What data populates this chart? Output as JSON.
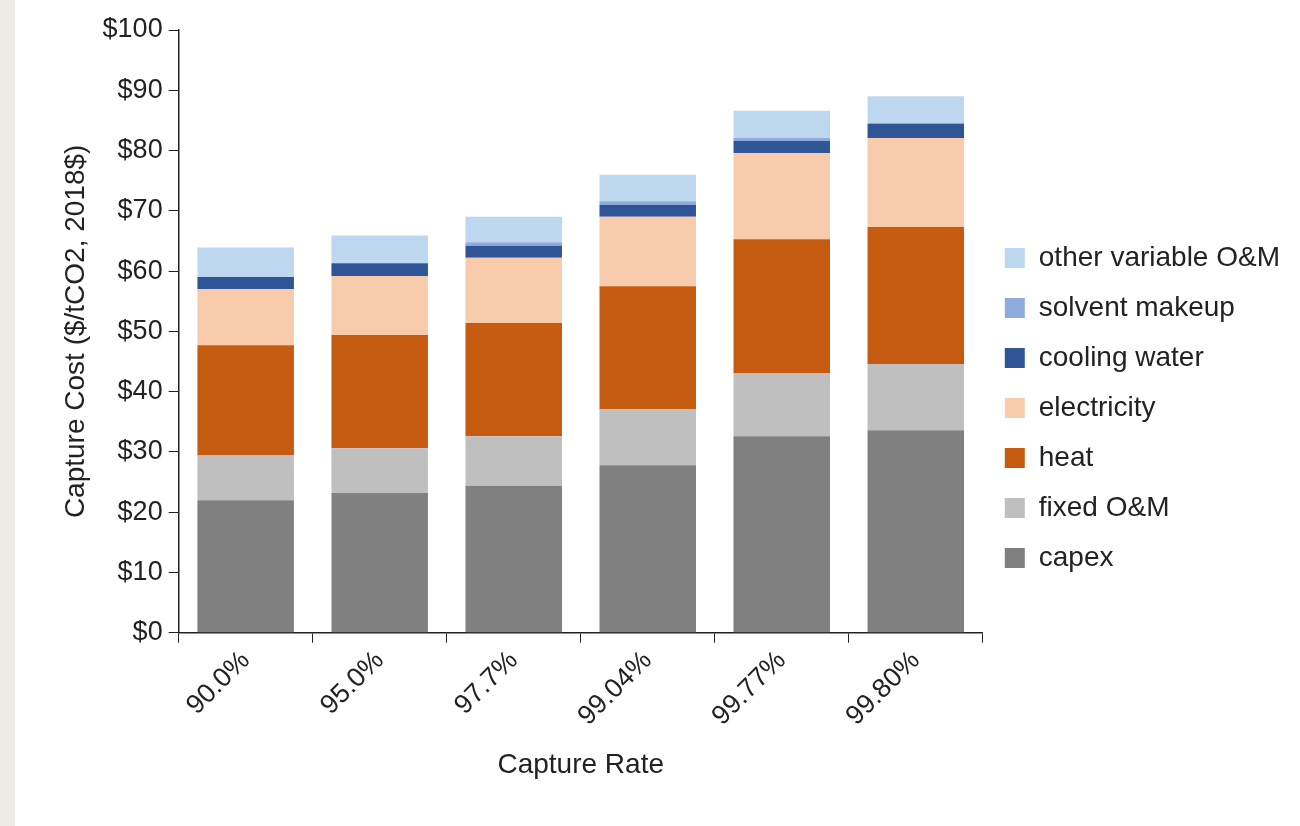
{
  "chart_data": {
    "type": "bar",
    "stacked": true,
    "xlabel": "Capture Rate",
    "ylabel": "Capture Cost ($/tCO2, 2018$)",
    "categories": [
      "90.0%",
      "95.0%",
      "97.7%",
      "99.04%",
      "99.77%",
      "99.80%"
    ],
    "series": [
      {
        "name": "capex",
        "color": "#808080",
        "values": [
          22,
          23.2,
          24.4,
          27.8,
          32.6,
          33.6
        ]
      },
      {
        "name": "fixed O&M",
        "color": "#bfbfbf",
        "values": [
          7.4,
          7.4,
          8.2,
          9.3,
          10.5,
          11.0
        ]
      },
      {
        "name": "heat",
        "color": "#c55a11",
        "values": [
          18.3,
          18.8,
          18.8,
          20.4,
          22.2,
          22.7
        ]
      },
      {
        "name": "electricity",
        "color": "#f8cbad",
        "values": [
          9.3,
          9.8,
          10.8,
          11.5,
          14.3,
          14.8
        ]
      },
      {
        "name": "cooling water",
        "color": "#2f5597",
        "values": [
          2.0,
          2.1,
          2.0,
          2.0,
          2.0,
          2.3
        ]
      },
      {
        "name": "solvent makeup",
        "color": "#8faadc",
        "values": [
          null,
          null,
          0.6,
          0.6,
          0.5,
          0.2
        ]
      },
      {
        "name": "other variable O&M",
        "color": "#bdd7ee",
        "values": [
          4.9,
          4.6,
          4.2,
          4.4,
          4.5,
          4.4
        ]
      }
    ],
    "ylim": [
      0,
      100
    ],
    "yticks": [
      {
        "value": 0,
        "label": "$0"
      },
      {
        "value": 10,
        "label": "$10"
      },
      {
        "value": 20,
        "label": "$20"
      },
      {
        "value": 30,
        "label": "$30"
      },
      {
        "value": 40,
        "label": "$40"
      },
      {
        "value": 50,
        "label": "$50"
      },
      {
        "value": 60,
        "label": "$60"
      },
      {
        "value": 70,
        "label": "$70"
      },
      {
        "value": 80,
        "label": "$80"
      },
      {
        "value": 90,
        "label": "$90"
      },
      {
        "value": 100,
        "label": "$100"
      }
    ],
    "grid": false,
    "legend": "right"
  }
}
